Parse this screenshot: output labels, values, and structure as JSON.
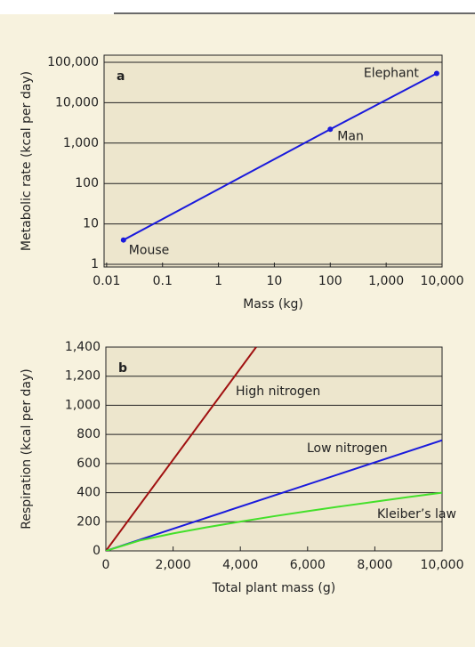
{
  "chart_data": [
    {
      "type": "line",
      "panel_label": "a",
      "x_label": "Mass (kg)",
      "y_label": "Metabolic rate (kcal per day)",
      "xscale": "log",
      "yscale": "log",
      "xlim": [
        0.009,
        10000
      ],
      "ylim": [
        0.86,
        150000
      ],
      "xticks": [
        0.01,
        0.1,
        1,
        10,
        100,
        {
          "value": 1000,
          "label": "1,000"
        },
        {
          "value": 10000,
          "label": "10,000"
        }
      ],
      "yticks": [
        1,
        10,
        100,
        {
          "value": 1000,
          "label": "1,000"
        },
        {
          "value": 10000,
          "label": "10,000"
        },
        {
          "value": 100000,
          "label": "100,000"
        }
      ],
      "grid": true,
      "series": [
        {
          "color": "#1a1adc",
          "markers": true,
          "x": [
            0.02,
            100,
            8000
          ],
          "values": [
            4,
            2200,
            53000
          ],
          "point_labels": [
            "Mouse",
            "Man",
            "Elephant"
          ]
        }
      ]
    },
    {
      "type": "line",
      "panel_label": "b",
      "x_label": "Total plant mass (g)",
      "y_label": "Respiration (kcal per day)",
      "xscale": "linear",
      "yscale": "linear",
      "xlim": [
        0,
        10000
      ],
      "ylim": [
        0,
        1400
      ],
      "xticks": [
        0,
        {
          "value": 2000,
          "label": "2,000"
        },
        {
          "value": 4000,
          "label": "4,000"
        },
        {
          "value": 6000,
          "label": "6,000"
        },
        {
          "value": 8000,
          "label": "8,000"
        },
        {
          "value": 10000,
          "label": "10,000"
        }
      ],
      "yticks": [
        0,
        200,
        400,
        600,
        800,
        {
          "value": 1000,
          "label": "1,000"
        },
        {
          "value": 1200,
          "label": "1,200"
        },
        {
          "value": 1400,
          "label": "1,400"
        }
      ],
      "grid": true,
      "series": [
        {
          "name": "High nitrogen",
          "color": "#a01010",
          "x": [
            0,
            4470
          ],
          "values": [
            0,
            1400
          ]
        },
        {
          "name": "Low nitrogen",
          "color": "#1a1adc",
          "x": [
            0,
            10000
          ],
          "values": [
            0,
            760
          ]
        },
        {
          "name": "Kleiber’s law",
          "color": "#44e02a",
          "x": [
            0,
            1000,
            2000,
            3000,
            4000,
            5000,
            6000,
            7000,
            8000,
            9000,
            10000
          ],
          "values": [
            0,
            71,
            120,
            162,
            201,
            238,
            273,
            306,
            338,
            370,
            400
          ]
        }
      ]
    }
  ]
}
